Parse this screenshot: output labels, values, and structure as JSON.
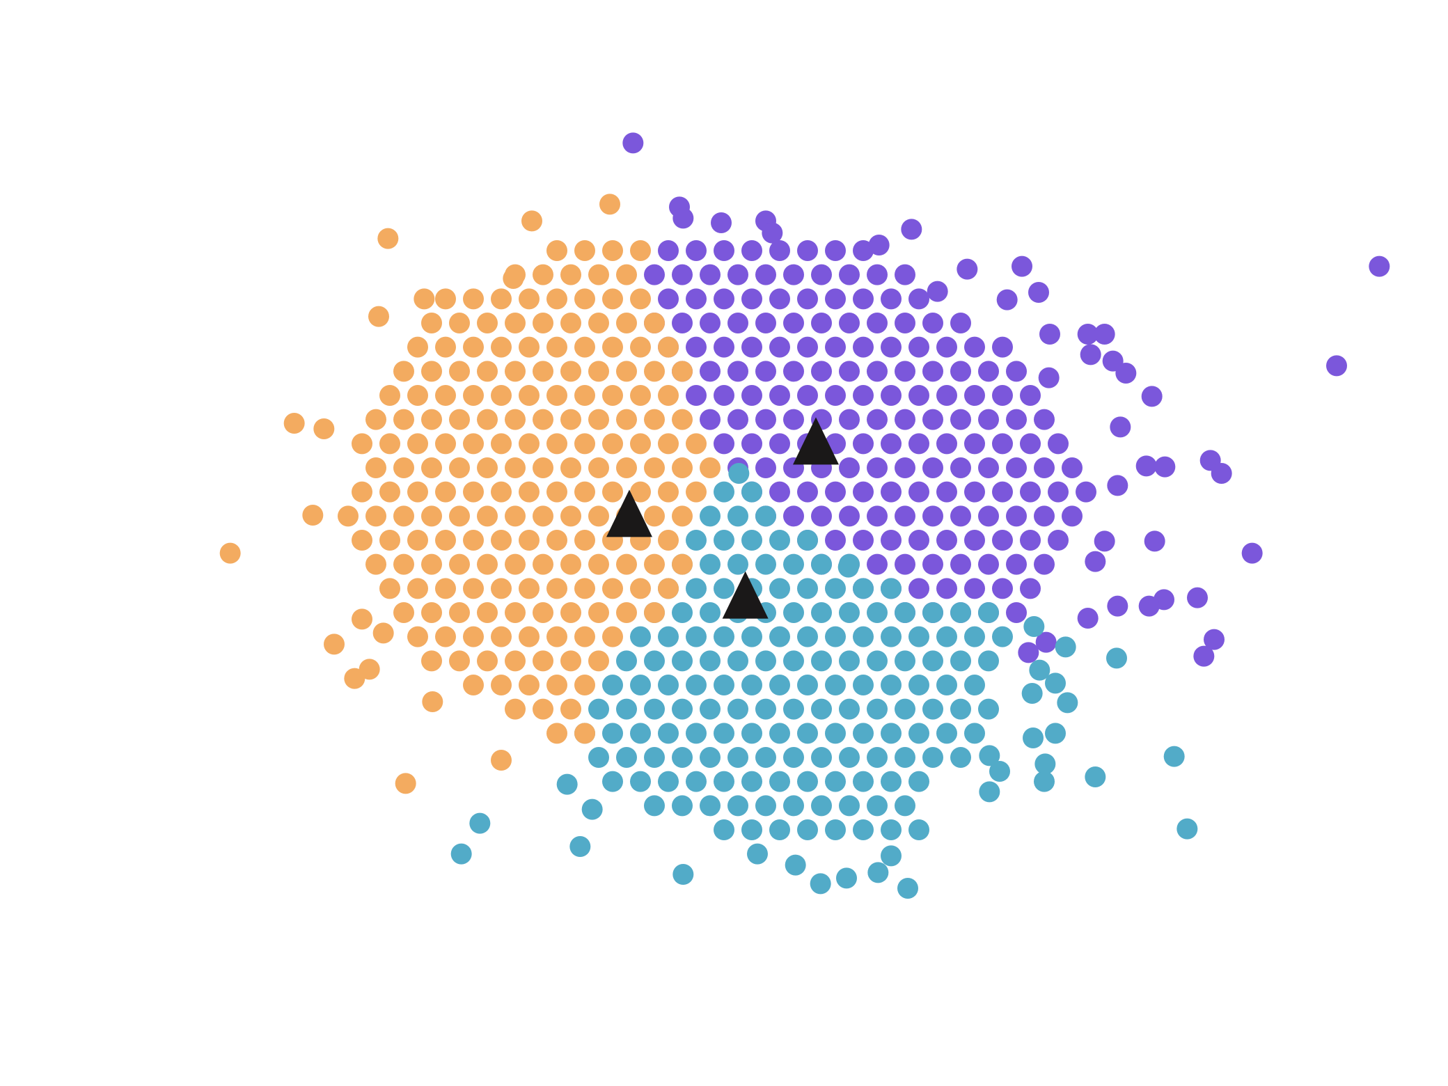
{
  "chart_data": {
    "type": "scatter",
    "xlim": [
      0,
      1560
    ],
    "ylim": [
      1170,
      0
    ],
    "grid": false,
    "series": [
      {
        "color": "#7b57db",
        "marker": "circle",
        "x": [
          720,
          750,
          780,
          810,
          840,
          870,
          900,
          930,
          705,
          735,
          765,
          795,
          825,
          855,
          885,
          915,
          945,
          975,
          720,
          750,
          780,
          810,
          840,
          870,
          900,
          930,
          960,
          990,
          705,
          735,
          765,
          795,
          825,
          855,
          885,
          915,
          945,
          975,
          1005,
          1035,
          720,
          750,
          780,
          810,
          840,
          870,
          900,
          930,
          960,
          990,
          1020,
          1050,
          1080,
          735,
          765,
          795,
          825,
          855,
          885,
          915,
          945,
          975,
          1005,
          1035,
          1065,
          1095,
          750,
          780,
          810,
          840,
          870,
          900,
          930,
          960,
          990,
          1020,
          1050,
          1080,
          1110,
          765,
          795,
          825,
          855,
          885,
          915,
          945,
          975,
          1005,
          1035,
          1065,
          1095,
          1125,
          780,
          810,
          840,
          870,
          900,
          930,
          960,
          990,
          1020,
          1050,
          1080,
          1110,
          1140,
          795,
          825,
          855,
          885,
          915,
          945,
          975,
          1005,
          1035,
          1065,
          1095,
          1125,
          1155,
          810,
          840,
          870,
          900,
          930,
          960,
          990,
          1020,
          1050,
          1080,
          1110,
          1140,
          1170,
          825,
          855,
          885,
          915,
          945,
          975,
          1005,
          1035,
          1065,
          1095,
          1125,
          1155,
          870,
          900,
          930,
          960,
          990,
          1020,
          1050,
          1080,
          1110,
          1140,
          885,
          915,
          945,
          975,
          1005,
          1035,
          1065,
          1095,
          1125,
          930,
          960,
          990,
          1020,
          1050,
          1080,
          1110,
          975,
          1005,
          1035,
          1065,
          1095,
          682,
          732,
          736,
          777,
          825,
          832,
          982,
          947,
          1101,
          1119,
          1085,
          1131,
          1172,
          1190,
          1175,
          1199,
          1213,
          1241,
          1130,
          1207,
          1235,
          1255,
          1204,
          1304,
          1316,
          1190,
          1244,
          1349,
          1180,
          1290,
          1254,
          1238,
          1204,
          1172,
          1308,
          1297,
          1108,
          1127,
          1486,
          1440,
          1010,
          1042
        ],
        "values": [
          270,
          270,
          270,
          270,
          270,
          270,
          270,
          270,
          296,
          296,
          296,
          296,
          296,
          296,
          296,
          296,
          296,
          296,
          322,
          322,
          322,
          322,
          322,
          322,
          322,
          322,
          322,
          322,
          348,
          348,
          348,
          348,
          348,
          348,
          348,
          348,
          348,
          348,
          348,
          348,
          374,
          374,
          374,
          374,
          374,
          374,
          374,
          374,
          374,
          374,
          374,
          374,
          374,
          400,
          400,
          400,
          400,
          400,
          400,
          400,
          400,
          400,
          400,
          400,
          400,
          400,
          426,
          426,
          426,
          426,
          426,
          426,
          426,
          426,
          426,
          426,
          426,
          426,
          426,
          452,
          452,
          452,
          452,
          452,
          452,
          452,
          452,
          452,
          452,
          452,
          452,
          452,
          478,
          478,
          478,
          478,
          478,
          478,
          478,
          478,
          478,
          478,
          478,
          478,
          478,
          504,
          504,
          504,
          504,
          504,
          504,
          504,
          504,
          504,
          504,
          504,
          504,
          504,
          530,
          530,
          530,
          530,
          530,
          530,
          530,
          530,
          530,
          530,
          530,
          530,
          530,
          556,
          556,
          556,
          556,
          556,
          556,
          556,
          556,
          556,
          556,
          556,
          556,
          582,
          582,
          582,
          582,
          582,
          582,
          582,
          582,
          582,
          582,
          608,
          608,
          608,
          608,
          608,
          608,
          608,
          608,
          608,
          634,
          634,
          634,
          634,
          634,
          634,
          634,
          660,
          660,
          660,
          660,
          660,
          154,
          223,
          235,
          240,
          238,
          251,
          247,
          264,
          287,
          315,
          323,
          360,
          360,
          360,
          382,
          389,
          402,
          427,
          407,
          460,
          502,
          503,
          523,
          496,
          510,
          583,
          583,
          596,
          605,
          644,
          646,
          653,
          653,
          666,
          689,
          707,
          703,
          692,
          287,
          394,
          314,
          290
        ]
      },
      {
        "color": "#52abc8",
        "marker": "circle",
        "x": [
          780,
          810,
          765,
          795,
          825,
          750,
          780,
          810,
          840,
          870,
          735,
          765,
          795,
          825,
          855,
          885,
          915,
          720,
          750,
          780,
          810,
          840,
          870,
          900,
          930,
          960,
          705,
          735,
          765,
          795,
          825,
          855,
          885,
          915,
          945,
          975,
          1005,
          1035,
          1065,
          690,
          720,
          750,
          780,
          810,
          840,
          870,
          900,
          930,
          960,
          990,
          1020,
          1050,
          1080,
          675,
          705,
          735,
          765,
          795,
          825,
          855,
          885,
          915,
          945,
          975,
          1005,
          1035,
          1065,
          660,
          690,
          720,
          750,
          780,
          810,
          840,
          870,
          900,
          930,
          960,
          990,
          1020,
          1050,
          645,
          675,
          705,
          735,
          765,
          795,
          825,
          855,
          885,
          915,
          945,
          975,
          1005,
          1035,
          1065,
          630,
          660,
          690,
          720,
          750,
          780,
          810,
          840,
          870,
          900,
          930,
          960,
          990,
          1020,
          1050,
          645,
          675,
          705,
          735,
          765,
          795,
          825,
          855,
          885,
          915,
          945,
          975,
          1005,
          1035,
          660,
          690,
          720,
          750,
          780,
          810,
          840,
          870,
          900,
          930,
          960,
          990,
          705,
          735,
          765,
          795,
          825,
          855,
          885,
          915,
          945,
          975,
          780,
          810,
          840,
          870,
          900,
          930,
          960,
          990,
          796,
          914,
          1114,
          1148,
          1120,
          1137,
          1112,
          1150,
          1203,
          1113,
          1137,
          1066,
          1077,
          1126,
          1125,
          1066,
          1180,
          1265,
          1279,
          736,
          517,
          497,
          625,
          638,
          857,
          884,
          912,
          946,
          978,
          960,
          816,
          611
        ],
        "values": [
          530,
          530,
          556,
          556,
          556,
          582,
          582,
          582,
          582,
          582,
          608,
          608,
          608,
          608,
          608,
          608,
          608,
          634,
          634,
          634,
          634,
          634,
          634,
          634,
          634,
          634,
          660,
          660,
          660,
          660,
          660,
          660,
          660,
          660,
          660,
          660,
          660,
          660,
          660,
          686,
          686,
          686,
          686,
          686,
          686,
          686,
          686,
          686,
          686,
          686,
          686,
          686,
          686,
          712,
          712,
          712,
          712,
          712,
          712,
          712,
          712,
          712,
          712,
          712,
          712,
          712,
          712,
          738,
          738,
          738,
          738,
          738,
          738,
          738,
          738,
          738,
          738,
          738,
          738,
          738,
          738,
          764,
          764,
          764,
          764,
          764,
          764,
          764,
          764,
          764,
          764,
          764,
          764,
          764,
          764,
          764,
          790,
          790,
          790,
          790,
          790,
          790,
          790,
          790,
          790,
          790,
          790,
          790,
          790,
          790,
          790,
          816,
          816,
          816,
          816,
          816,
          816,
          816,
          816,
          816,
          816,
          816,
          816,
          816,
          816,
          842,
          842,
          842,
          842,
          842,
          842,
          842,
          842,
          842,
          842,
          842,
          842,
          868,
          868,
          868,
          868,
          868,
          868,
          868,
          868,
          868,
          868,
          894,
          894,
          894,
          894,
          894,
          894,
          894,
          894,
          510,
          611,
          675,
          697,
          722,
          736,
          747,
          757,
          709,
          795,
          790,
          814,
          831,
          823,
          842,
          853,
          837,
          815,
          893,
          942,
          887,
          920,
          912,
          872,
          932,
          952,
          946,
          940,
          957,
          922,
          920,
          845
        ]
      },
      {
        "color": "#f3ab60",
        "marker": "circle",
        "x": [
          600,
          630,
          660,
          690,
          555,
          585,
          615,
          645,
          675,
          480,
          510,
          540,
          570,
          600,
          630,
          660,
          690,
          465,
          495,
          525,
          555,
          585,
          615,
          645,
          675,
          705,
          450,
          480,
          510,
          540,
          570,
          600,
          630,
          660,
          690,
          720,
          435,
          465,
          495,
          525,
          555,
          585,
          615,
          645,
          675,
          705,
          735,
          420,
          450,
          480,
          510,
          540,
          570,
          600,
          630,
          660,
          690,
          720,
          405,
          435,
          465,
          495,
          525,
          555,
          585,
          615,
          645,
          675,
          705,
          735,
          390,
          420,
          450,
          480,
          510,
          540,
          570,
          600,
          630,
          660,
          690,
          720,
          750,
          405,
          435,
          465,
          495,
          525,
          555,
          585,
          615,
          645,
          675,
          705,
          735,
          765,
          390,
          420,
          450,
          480,
          510,
          540,
          570,
          600,
          630,
          660,
          690,
          720,
          750,
          375,
          405,
          435,
          465,
          495,
          525,
          555,
          585,
          615,
          645,
          675,
          705,
          735,
          390,
          420,
          450,
          480,
          510,
          540,
          570,
          600,
          630,
          660,
          690,
          720,
          405,
          435,
          465,
          495,
          525,
          555,
          585,
          615,
          645,
          675,
          705,
          735,
          420,
          450,
          480,
          510,
          540,
          570,
          600,
          630,
          660,
          690,
          720,
          435,
          465,
          495,
          525,
          555,
          585,
          615,
          645,
          675,
          705,
          450,
          480,
          510,
          540,
          570,
          600,
          630,
          660,
          465,
          495,
          525,
          555,
          585,
          615,
          645,
          510,
          540,
          570,
          600,
          630,
          555,
          585,
          615,
          600,
          630,
          418,
          573,
          657,
          317,
          248,
          337,
          349,
          360,
          390,
          382,
          398,
          413,
          466,
          437,
          540,
          457,
          408,
          553
        ],
        "values": [
          270,
          270,
          270,
          270,
          296,
          296,
          296,
          296,
          296,
          322,
          322,
          322,
          322,
          322,
          322,
          322,
          322,
          348,
          348,
          348,
          348,
          348,
          348,
          348,
          348,
          348,
          374,
          374,
          374,
          374,
          374,
          374,
          374,
          374,
          374,
          374,
          400,
          400,
          400,
          400,
          400,
          400,
          400,
          400,
          400,
          400,
          400,
          426,
          426,
          426,
          426,
          426,
          426,
          426,
          426,
          426,
          426,
          426,
          452,
          452,
          452,
          452,
          452,
          452,
          452,
          452,
          452,
          452,
          452,
          452,
          478,
          478,
          478,
          478,
          478,
          478,
          478,
          478,
          478,
          478,
          478,
          478,
          478,
          504,
          504,
          504,
          504,
          504,
          504,
          504,
          504,
          504,
          504,
          504,
          504,
          504,
          530,
          530,
          530,
          530,
          530,
          530,
          530,
          530,
          530,
          530,
          530,
          530,
          530,
          556,
          556,
          556,
          556,
          556,
          556,
          556,
          556,
          556,
          556,
          556,
          556,
          556,
          582,
          582,
          582,
          582,
          582,
          582,
          582,
          582,
          582,
          582,
          582,
          582,
          608,
          608,
          608,
          608,
          608,
          608,
          608,
          608,
          608,
          608,
          608,
          608,
          634,
          634,
          634,
          634,
          634,
          634,
          634,
          634,
          634,
          634,
          634,
          660,
          660,
          660,
          660,
          660,
          660,
          660,
          660,
          660,
          660,
          686,
          686,
          686,
          686,
          686,
          686,
          686,
          686,
          712,
          712,
          712,
          712,
          712,
          712,
          712,
          738,
          738,
          738,
          738,
          738,
          764,
          764,
          764,
          790,
          790,
          257,
          238,
          220,
          456,
          596,
          555,
          462,
          694,
          667,
          731,
          721,
          682,
          756,
          844,
          819,
          322,
          341,
          300
        ]
      },
      {
        "color": "#1a1818",
        "marker": "triangle",
        "x": [
          678,
          879,
          803
        ],
        "values": [
          553,
          475,
          641
        ]
      }
    ]
  }
}
